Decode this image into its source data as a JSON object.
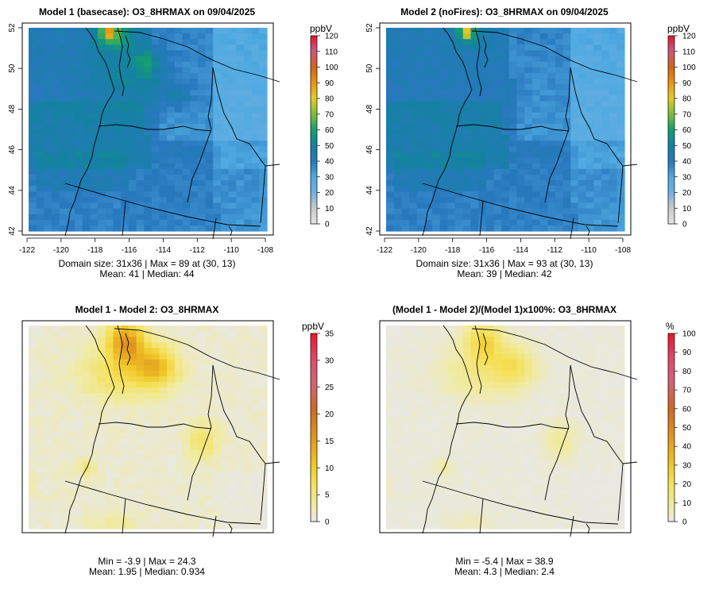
{
  "panels": [
    {
      "title": "Model 1 (basecase): O3_8HRMAX on 09/04/2025",
      "stats": [
        "Domain size: 31x36 | Max = 89 at (30, 13)",
        "Mean: 41 |  Median: 44"
      ],
      "chart_data": {
        "type": "heatmap",
        "field": "O3_8HRMAX",
        "units": "ppbV",
        "xlim": [
          -122,
          -108
        ],
        "ylim": [
          42,
          52
        ],
        "x_ticks": [
          "-122",
          "-120",
          "-118",
          "-116",
          "-114",
          "-112",
          "-110",
          "-108"
        ],
        "y_ticks": [
          "42",
          "44",
          "46",
          "48",
          "50",
          "52"
        ],
        "colorbar": {
          "label": "ppbV",
          "range": [
            0,
            120
          ],
          "ticks": [
            "0",
            "10",
            "20",
            "30",
            "40",
            "50",
            "60",
            "70",
            "80",
            "90",
            "100",
            "110",
            "120"
          ]
        },
        "domain_size": [
          31,
          36
        ],
        "max": 89,
        "max_at": [
          30,
          13
        ],
        "mean": 41,
        "median": 44,
        "pattern": "base"
      }
    },
    {
      "title": "Model 2 (noFires): O3_8HRMAX on 09/04/2025",
      "stats": [
        "Domain size: 31x36 | Max = 93 at (30, 13)",
        "Mean: 39 |  Median: 42"
      ],
      "chart_data": {
        "type": "heatmap",
        "field": "O3_8HRMAX",
        "units": "ppbV",
        "xlim": [
          -122,
          -108
        ],
        "ylim": [
          42,
          52
        ],
        "x_ticks": [
          "-122",
          "-120",
          "-118",
          "-116",
          "-114",
          "-112",
          "-110",
          "-108"
        ],
        "y_ticks": [
          "42",
          "44",
          "46",
          "48",
          "50",
          "52"
        ],
        "colorbar": {
          "label": "ppbV",
          "range": [
            0,
            120
          ],
          "ticks": [
            "0",
            "10",
            "20",
            "30",
            "40",
            "50",
            "60",
            "70",
            "80",
            "90",
            "100",
            "110",
            "120"
          ]
        },
        "domain_size": [
          31,
          36
        ],
        "max": 93,
        "max_at": [
          30,
          13
        ],
        "mean": 39,
        "median": 42,
        "pattern": "nofire"
      }
    },
    {
      "title": "Model 1 - Model 2: O3_8HRMAX",
      "stats": [
        "Min = -3.9 | Max = 24.3",
        "Mean: 1.95 |  Median: 0.934"
      ],
      "chart_data": {
        "type": "heatmap",
        "field": "O3_8HRMAX difference",
        "units": "ppbV",
        "colorbar": {
          "label": "ppbV",
          "range": [
            0,
            35
          ],
          "ticks": [
            "0",
            "5",
            "10",
            "15",
            "20",
            "25",
            "30",
            "35"
          ]
        },
        "min": -3.9,
        "max": 24.3,
        "mean": 1.95,
        "median": 0.934,
        "pattern": "diff"
      }
    },
    {
      "title": "(Model 1 - Model 2)/(Model 1)x100%: O3_8HRMAX",
      "stats": [
        "Min = -5.4 | Max = 38.9",
        "Mean: 4.3 |  Median: 2.4"
      ],
      "chart_data": {
        "type": "heatmap",
        "field": "O3_8HRMAX percent difference",
        "units": "%",
        "colorbar": {
          "label": "%",
          "range": [
            0,
            100
          ],
          "ticks": [
            "0",
            "10",
            "20",
            "30",
            "40",
            "50",
            "60",
            "70",
            "80",
            "90",
            "100"
          ]
        },
        "min": -5.4,
        "max": 38.9,
        "mean": 4.3,
        "median": 2.4,
        "pattern": "pct"
      }
    }
  ]
}
